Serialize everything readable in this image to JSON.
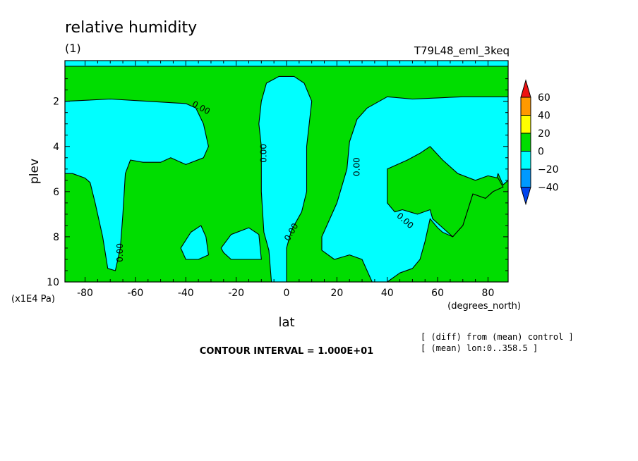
{
  "chart_data": {
    "type": "contour",
    "title": "relative humidity",
    "subtitle": "(1)",
    "experiment": "T79L48_eml_3keq",
    "xlabel": "lat",
    "xunits": "(degrees_north)",
    "ylabel": "plev",
    "yunits": "(x1E4 Pa)",
    "xlim": [
      -88,
      88
    ],
    "ylim": [
      10,
      0.2
    ],
    "x_ticks": [
      -80,
      -60,
      -40,
      -20,
      0,
      20,
      40,
      60,
      80
    ],
    "x_tick_labels": [
      "-80",
      "-60",
      "-40",
      "-20",
      "0",
      "20",
      "40",
      "60",
      "80"
    ],
    "y_ticks": [
      2,
      4,
      6,
      8,
      10
    ],
    "y_tick_labels": [
      "2",
      "4",
      "6",
      "8",
      "10"
    ],
    "contour_interval_text": "CONTOUR INTERVAL = 1.000E+01",
    "notes": [
      "[ (diff) from (mean) control ]",
      "[ (mean) lon:0..358.5 ]"
    ],
    "colorbar": {
      "levels": [
        60,
        40,
        20,
        0,
        -20,
        -40
      ],
      "level_labels": [
        "60",
        "40",
        "20",
        "0",
        "−20",
        "−40"
      ],
      "colors": [
        "#ee1111",
        "#ff9900",
        "#ffff00",
        "#00dd00",
        "#00ffff",
        "#0099ff",
        "#0044ee"
      ]
    },
    "contour_labels": [
      {
        "text": "0.00",
        "lat": -34,
        "plev": 2.3
      },
      {
        "text": "0.00",
        "lat": -9,
        "plev": 4.3
      },
      {
        "text": "0.00",
        "lat": 28,
        "plev": 4.9
      },
      {
        "text": "0.00",
        "lat": 47,
        "plev": 7.3
      },
      {
        "text": "0.00",
        "lat": -66,
        "plev": 8.7
      },
      {
        "text": "0.00",
        "lat": 2,
        "plev": 7.8
      }
    ],
    "negative_regions": [
      {
        "name": "southern-upper",
        "points": [
          [
            -88,
            2
          ],
          [
            -70,
            1.9
          ],
          [
            -55,
            2
          ],
          [
            -40,
            2.1
          ],
          [
            -36,
            2.3
          ],
          [
            -33,
            3
          ],
          [
            -31,
            4
          ],
          [
            -33,
            4.5
          ],
          [
            -40,
            4.8
          ],
          [
            -46,
            4.5
          ],
          [
            -50,
            4.7
          ],
          [
            -57,
            4.7
          ],
          [
            -62,
            4.6
          ],
          [
            -64,
            5.2
          ],
          [
            -65,
            7
          ],
          [
            -66,
            8.5
          ],
          [
            -68,
            9.5
          ],
          [
            -71,
            9.4
          ],
          [
            -73,
            8
          ],
          [
            -76,
            6.5
          ],
          [
            -78,
            5.6
          ],
          [
            -80,
            5.4
          ],
          [
            -85,
            5.2
          ],
          [
            -88,
            5.2
          ]
        ]
      },
      {
        "name": "equatorial-column",
        "points": [
          [
            -10,
            2
          ],
          [
            -8,
            1.2
          ],
          [
            -3,
            0.9
          ],
          [
            3,
            0.9
          ],
          [
            7,
            1.2
          ],
          [
            10,
            2
          ],
          [
            9,
            3
          ],
          [
            8,
            4
          ],
          [
            8,
            6
          ],
          [
            6,
            6.9
          ],
          [
            2,
            7.7
          ],
          [
            0,
            8.5
          ],
          [
            0,
            10
          ],
          [
            -6,
            10
          ],
          [
            -7,
            8.6
          ],
          [
            -9,
            7.8
          ],
          [
            -10,
            6
          ],
          [
            -10,
            4
          ],
          [
            -11,
            3
          ]
        ]
      },
      {
        "name": "southern-blob-a",
        "points": [
          [
            -42,
            8.5
          ],
          [
            -38,
            7.8
          ],
          [
            -34,
            7.5
          ],
          [
            -32,
            8
          ],
          [
            -31,
            8.8
          ],
          [
            -35,
            9
          ],
          [
            -40,
            9
          ]
        ]
      },
      {
        "name": "southern-blob-b",
        "points": [
          [
            -26,
            8.5
          ],
          [
            -22,
            7.9
          ],
          [
            -15,
            7.6
          ],
          [
            -11,
            7.9
          ],
          [
            -10,
            9
          ],
          [
            -15,
            9
          ],
          [
            -22,
            9
          ],
          [
            -25,
            8.7
          ]
        ]
      },
      {
        "name": "northern",
        "points": [
          [
            14,
            8
          ],
          [
            20,
            6.5
          ],
          [
            24,
            5
          ],
          [
            25,
            3.8
          ],
          [
            28,
            2.8
          ],
          [
            32,
            2.3
          ],
          [
            40,
            1.8
          ],
          [
            50,
            1.9
          ],
          [
            60,
            1.85
          ],
          [
            70,
            1.8
          ],
          [
            80,
            1.8
          ],
          [
            88,
            1.8
          ],
          [
            88,
            5.5
          ],
          [
            86,
            5.7
          ],
          [
            84,
            5.2
          ],
          [
            82,
            6
          ],
          [
            79,
            6.3
          ],
          [
            74,
            6.1
          ],
          [
            70,
            7.5
          ],
          [
            66,
            8
          ],
          [
            62,
            7.8
          ],
          [
            60,
            7.6
          ],
          [
            57,
            7.2
          ],
          [
            55,
            8.2
          ],
          [
            53,
            9
          ],
          [
            50,
            9.4
          ],
          [
            45,
            9.6
          ],
          [
            40,
            10
          ],
          [
            34,
            10
          ],
          [
            30,
            9
          ],
          [
            25,
            8.8
          ],
          [
            19,
            9
          ],
          [
            14,
            8.6
          ]
        ]
      }
    ],
    "northern_green_inset": {
      "points": [
        [
          40,
          5
        ],
        [
          44,
          4.8
        ],
        [
          48,
          4.6
        ],
        [
          53,
          4.3
        ],
        [
          57,
          4
        ],
        [
          62,
          4.6
        ],
        [
          68,
          5.2
        ],
        [
          75,
          5.5
        ],
        [
          80,
          5.3
        ],
        [
          84,
          5.4
        ],
        [
          86,
          5.8
        ],
        [
          82,
          6
        ],
        [
          79,
          6.3
        ],
        [
          74,
          6.1
        ],
        [
          70,
          7.5
        ],
        [
          66,
          8
        ],
        [
          62,
          7.6
        ],
        [
          58,
          7.2
        ],
        [
          57,
          6.8
        ],
        [
          52,
          7
        ],
        [
          49,
          6.9
        ],
        [
          46,
          6.8
        ],
        [
          43,
          6.9
        ],
        [
          40,
          6.5
        ]
      ]
    }
  }
}
